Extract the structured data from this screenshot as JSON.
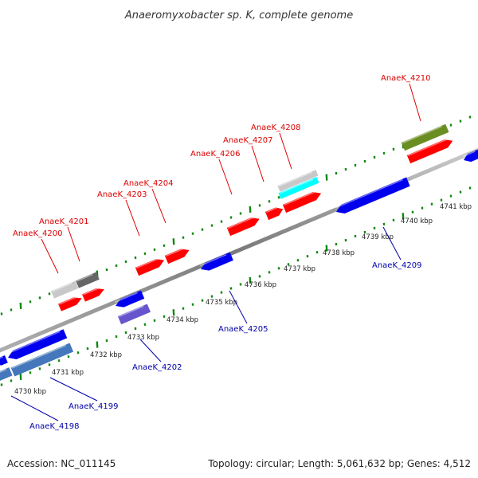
{
  "title": "Anaeromyxobacter sp. K, complete genome",
  "accession": "Accession: NC_011145",
  "topology": "Topology: circular; Length: 5,061,632 bp; Genes: 4,512",
  "colors": {
    "forward_label": "#dd0000",
    "reverse_label": "#0000aa",
    "axis": "#888888",
    "tick": "#118811"
  },
  "scale_labels": [
    "4730 kbp",
    "4731 kbp",
    "4732 kbp",
    "4733 kbp",
    "4734 kbp",
    "4735 kbp",
    "4736 kbp",
    "4737 kbp",
    "4738 kbp",
    "4739 kbp",
    "4740 kbp",
    "4741 kbp"
  ],
  "forward_labels": [
    "AnaeK_4200",
    "AnaeK_4201",
    "AnaeK_4203",
    "AnaeK_4204",
    "AnaeK_4206",
    "AnaeK_4207",
    "AnaeK_4208",
    "AnaeK_4210"
  ],
  "reverse_labels": [
    "AnaeK_4198",
    "AnaeK_4199",
    "AnaeK_4202",
    "AnaeK_4205",
    "AnaeK_4209"
  ],
  "gene_colors": {
    "red": "#ff0000",
    "blue": "#0000ee",
    "steel_blue": "#4477bb",
    "purple": "#6655cc",
    "light_gray": "#c8c8c8",
    "dark_gray": "#666666",
    "cyan": "#00ffff",
    "olive": "#6b8e23"
  }
}
